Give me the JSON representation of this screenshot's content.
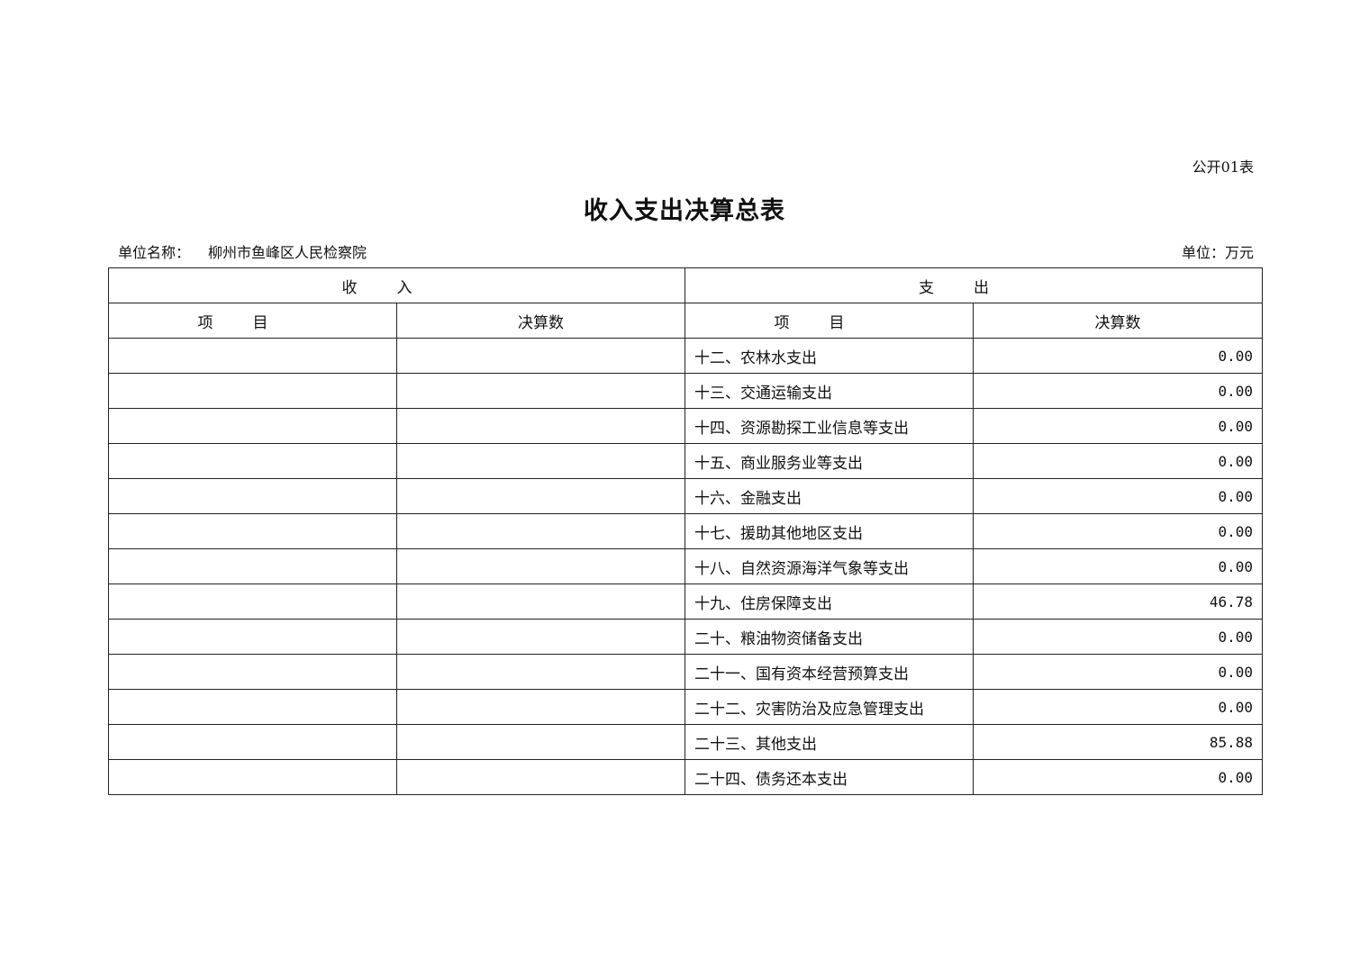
{
  "form_no": "公开01表",
  "title": "收入支出决算总表",
  "unit_name_label": "单位名称：",
  "unit_name": "柳州市鱼峰区人民检察院",
  "unit": "单位：万元",
  "header": {
    "income": "收入",
    "expense": "支出",
    "item": "项目",
    "amount": "决算数"
  },
  "rows": [
    {
      "income_item": "",
      "income_amount": "",
      "expense_item": "十二、农林水支出",
      "expense_amount": "0.00"
    },
    {
      "income_item": "",
      "income_amount": "",
      "expense_item": "十三、交通运输支出",
      "expense_amount": "0.00"
    },
    {
      "income_item": "",
      "income_amount": "",
      "expense_item": "十四、资源勘探工业信息等支出",
      "expense_amount": "0.00"
    },
    {
      "income_item": "",
      "income_amount": "",
      "expense_item": "十五、商业服务业等支出",
      "expense_amount": "0.00"
    },
    {
      "income_item": "",
      "income_amount": "",
      "expense_item": "十六、金融支出",
      "expense_amount": "0.00"
    },
    {
      "income_item": "",
      "income_amount": "",
      "expense_item": "十七、援助其他地区支出",
      "expense_amount": "0.00"
    },
    {
      "income_item": "",
      "income_amount": "",
      "expense_item": "十八、自然资源海洋气象等支出",
      "expense_amount": "0.00"
    },
    {
      "income_item": "",
      "income_amount": "",
      "expense_item": "十九、住房保障支出",
      "expense_amount": "46.78"
    },
    {
      "income_item": "",
      "income_amount": "",
      "expense_item": "二十、粮油物资储备支出",
      "expense_amount": "0.00"
    },
    {
      "income_item": "",
      "income_amount": "",
      "expense_item": "二十一、国有资本经营预算支出",
      "expense_amount": "0.00"
    },
    {
      "income_item": "",
      "income_amount": "",
      "expense_item": "二十二、灾害防治及应急管理支出",
      "expense_amount": "0.00"
    },
    {
      "income_item": "",
      "income_amount": "",
      "expense_item": "二十三、其他支出",
      "expense_amount": "85.88"
    },
    {
      "income_item": "",
      "income_amount": "",
      "expense_item": "二十四、债务还本支出",
      "expense_amount": "0.00"
    }
  ]
}
